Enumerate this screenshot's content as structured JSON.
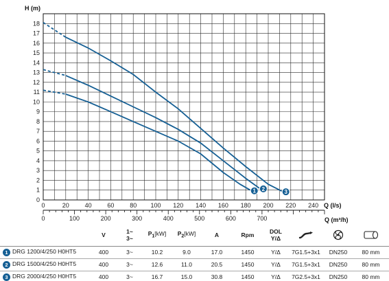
{
  "chart_data": {
    "type": "line",
    "ylabel": "H (m)",
    "xlabel": "Q (l/s)",
    "x2label": "Q (m³/h)",
    "xlim": [
      0,
      250
    ],
    "ylim": [
      0,
      19
    ],
    "x_ticks": [
      0,
      20,
      40,
      60,
      80,
      100,
      120,
      140,
      160,
      180,
      200,
      220,
      240
    ],
    "y_ticks": [
      0,
      1,
      2,
      3,
      4,
      5,
      6,
      7,
      8,
      9,
      10,
      11,
      12,
      13,
      14,
      15,
      16,
      17,
      18
    ],
    "x2_ticks": [
      0,
      100,
      200,
      300,
      400,
      500,
      600,
      700
    ],
    "grid": true,
    "series": [
      {
        "name": "1",
        "dashed_until": 20,
        "x": [
          0,
          20,
          40,
          60,
          80,
          100,
          120,
          140,
          160,
          175,
          184
        ],
        "y": [
          11.2,
          10.8,
          10.0,
          9.0,
          8.0,
          7.0,
          6.0,
          4.7,
          2.8,
          1.6,
          1.0
        ]
      },
      {
        "name": "2",
        "dashed_until": 20,
        "x": [
          0,
          20,
          40,
          60,
          80,
          100,
          120,
          140,
          160,
          180,
          192
        ],
        "y": [
          13.3,
          12.7,
          11.7,
          10.6,
          9.5,
          8.4,
          7.2,
          5.8,
          4.0,
          2.2,
          1.2
        ]
      },
      {
        "name": "3",
        "dashed_until": 20,
        "x": [
          0,
          20,
          40,
          60,
          80,
          100,
          120,
          140,
          160,
          180,
          200,
          212
        ],
        "y": [
          18.1,
          16.6,
          15.5,
          14.2,
          12.8,
          11.0,
          9.3,
          7.3,
          5.3,
          3.4,
          1.6,
          0.9
        ]
      }
    ]
  },
  "table": {
    "headers": {
      "v": "V",
      "phase_top": "1~",
      "phase_bottom": "3~",
      "p1_sym": "P",
      "p1_sub": "1",
      "p1_unit": "[kW]",
      "p2_sym": "P",
      "p2_sub": "2",
      "p2_unit": "[kW]",
      "amp": "A",
      "rpm": "Rpm",
      "dol_top": "DOL",
      "dol_bottom": "Y/Δ"
    },
    "icons": [
      "cable-icon",
      "impeller-icon",
      "solid-passage-icon"
    ],
    "rows": [
      {
        "no": "1",
        "model": "DRG 1200/4/250 H0HT5",
        "v": "400",
        "phase": "3~",
        "p1": "10.2",
        "p2": "9.0",
        "a": "17.0",
        "rpm": "1450",
        "start": "Y/Δ",
        "cable": "7G1.5+3x1",
        "dn": "DN250",
        "passage": "80 mm"
      },
      {
        "no": "2",
        "model": "DRG 1500/4/250 H0HT5",
        "v": "400",
        "phase": "3~",
        "p1": "12.6",
        "p2": "11.0",
        "a": "20.5",
        "rpm": "1450",
        "start": "Y/Δ",
        "cable": "7G1.5+3x1",
        "dn": "DN250",
        "passage": "80 mm"
      },
      {
        "no": "3",
        "model": "DRG 2000/4/250 H0HT5",
        "v": "400",
        "phase": "3~",
        "p1": "16.7",
        "p2": "15.0",
        "a": "30.8",
        "rpm": "1450",
        "start": "Y/Δ",
        "cable": "7G2.5+3x1",
        "dn": "DN250",
        "passage": "80 mm"
      }
    ]
  },
  "colors": {
    "curve": "#155f94",
    "grid": "#2a2a2a"
  }
}
